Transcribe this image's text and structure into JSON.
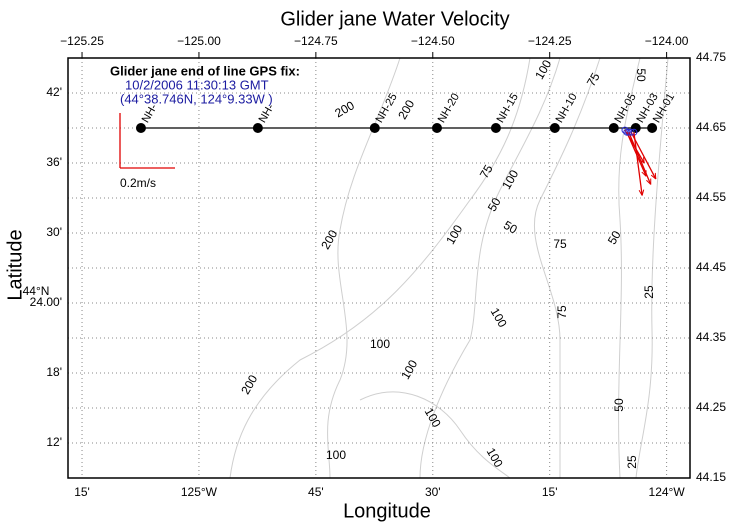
{
  "chart_data": {
    "type": "vector-map",
    "title": "Glider jane Water Velocity",
    "x_label": "Longitude",
    "y_label": "Latitude",
    "annotation": [
      "Glider jane end of line GPS fix:",
      "10/2/2006 11:30:13 GMT",
      "(44°38.746N, 124°9.33W )"
    ],
    "lat_degree_label": "44°N",
    "xlim": [
      -125.28,
      -123.95
    ],
    "ylim": [
      44.15,
      44.75
    ],
    "top_ticks": [
      {
        "value": -125.25,
        "label": "−125.25"
      },
      {
        "value": -125.0,
        "label": "−125.00"
      },
      {
        "value": -124.75,
        "label": "−124.75"
      },
      {
        "value": -124.5,
        "label": "−124.50"
      },
      {
        "value": -124.25,
        "label": "−124.25"
      },
      {
        "value": -124.0,
        "label": "−124.00"
      }
    ],
    "bottom_ticks": [
      {
        "value": -125.25,
        "label": "15'"
      },
      {
        "value": -125.0,
        "label": "125°W"
      },
      {
        "value": -124.75,
        "label": "45'"
      },
      {
        "value": -124.5,
        "label": "30'"
      },
      {
        "value": -124.25,
        "label": "15'"
      },
      {
        "value": -124.0,
        "label": "124°W"
      }
    ],
    "left_ticks": [
      {
        "value": 44.7,
        "label": "42'"
      },
      {
        "value": 44.6,
        "label": "36'"
      },
      {
        "value": 44.5,
        "label": "30'"
      },
      {
        "value": 44.4,
        "label": "24.00'"
      },
      {
        "value": 44.3,
        "label": "18'"
      },
      {
        "value": 44.2,
        "label": "12'"
      }
    ],
    "right_ticks": [
      44.75,
      44.65,
      44.55,
      44.45,
      44.35,
      44.25,
      44.15
    ],
    "grid": true,
    "stations": {
      "labels": [
        "NH-",
        "NH-",
        "NH-25",
        "NH-20",
        "NH-15",
        "NH-10",
        "NH-05",
        "NH-03",
        "NH-01"
      ],
      "lon": [
        -125.124,
        -124.874,
        -124.624,
        -124.491,
        -124.365,
        -124.239,
        -124.113,
        -124.066,
        -124.031
      ],
      "lat": [
        44.65,
        44.65,
        44.65,
        44.65,
        44.65,
        44.65,
        44.65,
        44.65,
        44.65
      ]
    },
    "vectors": {
      "color": "#e00000",
      "lon": [
        -124.089,
        -124.085,
        -124.081,
        -124.076,
        -124.07
      ],
      "lat": [
        44.647,
        44.644,
        44.644,
        44.644,
        44.644
      ],
      "u": [
        0.07,
        0.07,
        0.08,
        0.09,
        0.03
      ],
      "v": [
        -0.12,
        -0.16,
        -0.19,
        -0.17,
        -0.23
      ]
    },
    "scale_value": 0.2,
    "scale_label": "0.2m/s",
    "contour_labels": [
      "100",
      "75",
      "50",
      "200",
      "200",
      "75",
      "50",
      "50",
      "100",
      "75",
      "50",
      "200",
      "100",
      "75",
      "100",
      "25",
      "100",
      "100",
      "200",
      "50",
      "100",
      "100",
      "100",
      "25"
    ]
  }
}
